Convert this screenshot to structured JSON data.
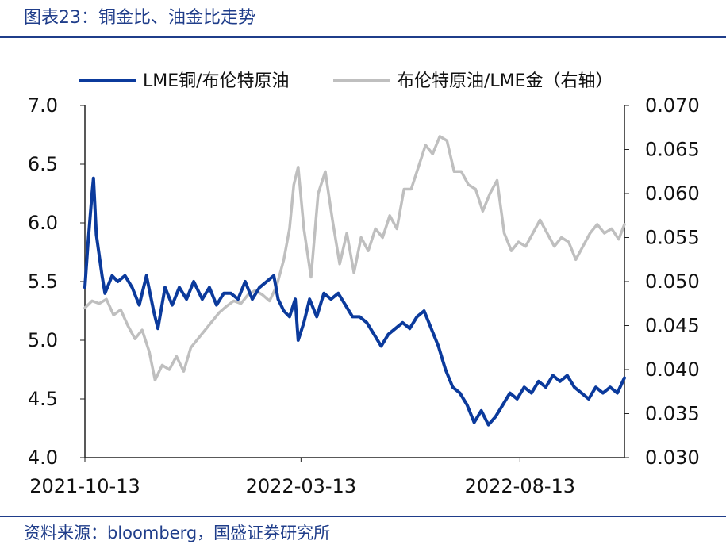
{
  "figure_title": "图表23：铜金比、油金比走势",
  "source_note": "资料来源：bloomberg，国盛证券研究所",
  "colors": {
    "series1": "#0b3a9c",
    "series2": "#bfbfbf",
    "title": "#1f3d8a"
  },
  "chart_data": {
    "type": "line",
    "title": "",
    "legend": {
      "placement": "top"
    },
    "grid": false,
    "x_ticks": [
      "2021-10-13",
      "2022-03-13",
      "2022-08-13"
    ],
    "y_left": {
      "range": [
        4.0,
        7.0
      ],
      "ticks": [
        "4.0",
        "4.5",
        "5.0",
        "5.5",
        "6.0",
        "6.5",
        "7.0"
      ]
    },
    "y_right": {
      "range": [
        0.03,
        0.07
      ],
      "ticks": [
        "0.030",
        "0.035",
        "0.040",
        "0.045",
        "0.050",
        "0.055",
        "0.060",
        "0.065",
        "0.070"
      ]
    },
    "x_range": [
      "2021-10-13",
      "2022-10-25"
    ],
    "series": [
      {
        "name": "LME铜/布伦特原油",
        "axis": "left",
        "points": [
          [
            "2021-10-13",
            5.45
          ],
          [
            "2021-10-15",
            5.8
          ],
          [
            "2021-10-18",
            6.25
          ],
          [
            "2021-10-19",
            6.38
          ],
          [
            "2021-10-21",
            5.9
          ],
          [
            "2021-10-25",
            5.55
          ],
          [
            "2021-10-27",
            5.4
          ],
          [
            "2021-11-01",
            5.55
          ],
          [
            "2021-11-05",
            5.5
          ],
          [
            "2021-11-10",
            5.55
          ],
          [
            "2021-11-15",
            5.45
          ],
          [
            "2021-11-20",
            5.3
          ],
          [
            "2021-11-25",
            5.55
          ],
          [
            "2021-11-30",
            5.25
          ],
          [
            "2021-12-03",
            5.1
          ],
          [
            "2021-12-08",
            5.45
          ],
          [
            "2021-12-13",
            5.3
          ],
          [
            "2021-12-18",
            5.45
          ],
          [
            "2021-12-23",
            5.35
          ],
          [
            "2021-12-28",
            5.5
          ],
          [
            "2022-01-03",
            5.35
          ],
          [
            "2022-01-08",
            5.45
          ],
          [
            "2022-01-13",
            5.3
          ],
          [
            "2022-01-18",
            5.4
          ],
          [
            "2022-01-23",
            5.4
          ],
          [
            "2022-01-28",
            5.35
          ],
          [
            "2022-02-02",
            5.5
          ],
          [
            "2022-02-07",
            5.35
          ],
          [
            "2022-02-12",
            5.45
          ],
          [
            "2022-02-17",
            5.5
          ],
          [
            "2022-02-22",
            5.55
          ],
          [
            "2022-02-25",
            5.35
          ],
          [
            "2022-03-01",
            5.25
          ],
          [
            "2022-03-05",
            5.2
          ],
          [
            "2022-03-09",
            5.35
          ],
          [
            "2022-03-11",
            5.0
          ],
          [
            "2022-03-15",
            5.15
          ],
          [
            "2022-03-19",
            5.35
          ],
          [
            "2022-03-24",
            5.2
          ],
          [
            "2022-03-29",
            5.4
          ],
          [
            "2022-04-03",
            5.35
          ],
          [
            "2022-04-08",
            5.4
          ],
          [
            "2022-04-13",
            5.3
          ],
          [
            "2022-04-18",
            5.2
          ],
          [
            "2022-04-23",
            5.2
          ],
          [
            "2022-04-28",
            5.15
          ],
          [
            "2022-05-03",
            5.05
          ],
          [
            "2022-05-08",
            4.95
          ],
          [
            "2022-05-13",
            5.05
          ],
          [
            "2022-05-18",
            5.1
          ],
          [
            "2022-05-23",
            5.15
          ],
          [
            "2022-05-28",
            5.1
          ],
          [
            "2022-06-02",
            5.2
          ],
          [
            "2022-06-07",
            5.25
          ],
          [
            "2022-06-12",
            5.1
          ],
          [
            "2022-06-17",
            4.95
          ],
          [
            "2022-06-22",
            4.75
          ],
          [
            "2022-06-27",
            4.6
          ],
          [
            "2022-07-02",
            4.55
          ],
          [
            "2022-07-07",
            4.45
          ],
          [
            "2022-07-12",
            4.3
          ],
          [
            "2022-07-17",
            4.4
          ],
          [
            "2022-07-22",
            4.28
          ],
          [
            "2022-07-27",
            4.35
          ],
          [
            "2022-08-01",
            4.45
          ],
          [
            "2022-08-06",
            4.55
          ],
          [
            "2022-08-11",
            4.5
          ],
          [
            "2022-08-16",
            4.6
          ],
          [
            "2022-08-21",
            4.55
          ],
          [
            "2022-08-26",
            4.65
          ],
          [
            "2022-08-31",
            4.6
          ],
          [
            "2022-09-05",
            4.7
          ],
          [
            "2022-09-10",
            4.65
          ],
          [
            "2022-09-15",
            4.7
          ],
          [
            "2022-09-20",
            4.6
          ],
          [
            "2022-09-25",
            4.55
          ],
          [
            "2022-09-30",
            4.5
          ],
          [
            "2022-10-05",
            4.6
          ],
          [
            "2022-10-10",
            4.55
          ],
          [
            "2022-10-15",
            4.6
          ],
          [
            "2022-10-20",
            4.55
          ],
          [
            "2022-10-25",
            4.68
          ]
        ]
      },
      {
        "name": "布伦特原油/LME金（右轴）",
        "axis": "right",
        "points": [
          [
            "2021-10-13",
            0.047
          ],
          [
            "2021-10-18",
            0.0478
          ],
          [
            "2021-10-23",
            0.0475
          ],
          [
            "2021-10-28",
            0.048
          ],
          [
            "2021-11-02",
            0.0462
          ],
          [
            "2021-11-07",
            0.0468
          ],
          [
            "2021-11-12",
            0.045
          ],
          [
            "2021-11-17",
            0.0435
          ],
          [
            "2021-11-22",
            0.0445
          ],
          [
            "2021-11-27",
            0.042
          ],
          [
            "2021-12-01",
            0.0388
          ],
          [
            "2021-12-06",
            0.0405
          ],
          [
            "2021-12-11",
            0.04
          ],
          [
            "2021-12-16",
            0.0415
          ],
          [
            "2021-12-21",
            0.0398
          ],
          [
            "2021-12-26",
            0.0425
          ],
          [
            "2021-12-31",
            0.0435
          ],
          [
            "2022-01-05",
            0.0445
          ],
          [
            "2022-01-10",
            0.0455
          ],
          [
            "2022-01-15",
            0.0465
          ],
          [
            "2022-01-20",
            0.0472
          ],
          [
            "2022-01-25",
            0.0478
          ],
          [
            "2022-01-30",
            0.0475
          ],
          [
            "2022-02-04",
            0.0485
          ],
          [
            "2022-02-09",
            0.049
          ],
          [
            "2022-02-14",
            0.0485
          ],
          [
            "2022-02-19",
            0.0478
          ],
          [
            "2022-02-24",
            0.0495
          ],
          [
            "2022-03-01",
            0.0525
          ],
          [
            "2022-03-05",
            0.056
          ],
          [
            "2022-03-08",
            0.061
          ],
          [
            "2022-03-11",
            0.063
          ],
          [
            "2022-03-15",
            0.056
          ],
          [
            "2022-03-20",
            0.0505
          ],
          [
            "2022-03-25",
            0.06
          ],
          [
            "2022-03-30",
            0.0625
          ],
          [
            "2022-04-04",
            0.057
          ],
          [
            "2022-04-09",
            0.052
          ],
          [
            "2022-04-14",
            0.0555
          ],
          [
            "2022-04-19",
            0.051
          ],
          [
            "2022-04-24",
            0.055
          ],
          [
            "2022-04-29",
            0.0535
          ],
          [
            "2022-05-04",
            0.056
          ],
          [
            "2022-05-09",
            0.055
          ],
          [
            "2022-05-14",
            0.0575
          ],
          [
            "2022-05-19",
            0.056
          ],
          [
            "2022-05-24",
            0.0605
          ],
          [
            "2022-05-29",
            0.0605
          ],
          [
            "2022-06-03",
            0.063
          ],
          [
            "2022-06-08",
            0.0655
          ],
          [
            "2022-06-13",
            0.0645
          ],
          [
            "2022-06-18",
            0.0665
          ],
          [
            "2022-06-23",
            0.066
          ],
          [
            "2022-06-28",
            0.0625
          ],
          [
            "2022-07-03",
            0.0625
          ],
          [
            "2022-07-08",
            0.061
          ],
          [
            "2022-07-13",
            0.0605
          ],
          [
            "2022-07-18",
            0.058
          ],
          [
            "2022-07-23",
            0.06
          ],
          [
            "2022-07-28",
            0.0615
          ],
          [
            "2022-08-02",
            0.0555
          ],
          [
            "2022-08-07",
            0.0535
          ],
          [
            "2022-08-12",
            0.0545
          ],
          [
            "2022-08-17",
            0.054
          ],
          [
            "2022-08-22",
            0.0555
          ],
          [
            "2022-08-27",
            0.057
          ],
          [
            "2022-09-01",
            0.0555
          ],
          [
            "2022-09-06",
            0.054
          ],
          [
            "2022-09-11",
            0.055
          ],
          [
            "2022-09-16",
            0.0545
          ],
          [
            "2022-09-21",
            0.0525
          ],
          [
            "2022-09-26",
            0.054
          ],
          [
            "2022-10-01",
            0.0555
          ],
          [
            "2022-10-06",
            0.0565
          ],
          [
            "2022-10-11",
            0.0555
          ],
          [
            "2022-10-16",
            0.056
          ],
          [
            "2022-10-21",
            0.0548
          ],
          [
            "2022-10-25",
            0.0565
          ]
        ]
      }
    ]
  }
}
